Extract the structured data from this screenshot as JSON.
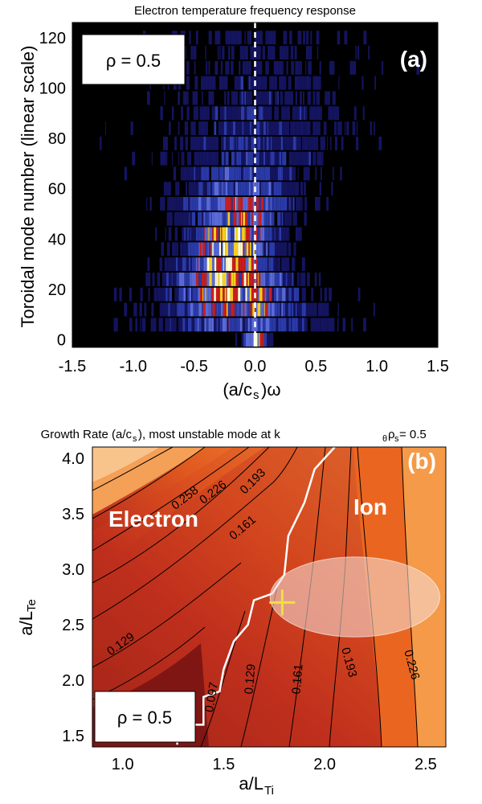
{
  "chart_data": [
    {
      "type": "heatmap",
      "panel_label": "(a)",
      "title": "Electron temperature frequency response",
      "xlabel": "(a/c",
      "xlabel_sub": "s",
      "xlabel_suffix": ")ω",
      "ylabel": "Toroidal mode number (linear scale)",
      "annotation": "ρ  = 0.5",
      "xlim": [
        -1.5,
        1.5
      ],
      "ylim": [
        -3,
        126
      ],
      "x_ticks": [
        "-1.5",
        "-1.0",
        "-0.5",
        "0.0",
        "0.5",
        "1.0",
        "1.5"
      ],
      "x_tick_values": [
        -1.5,
        -1.0,
        -0.5,
        0.0,
        0.5,
        1.0,
        1.5
      ],
      "y_ticks": [
        "0",
        "20",
        "40",
        "60",
        "80",
        "100",
        "120"
      ],
      "y_tick_values": [
        0,
        20,
        40,
        60,
        80,
        100,
        120
      ],
      "mode_rows": [
        0,
        6,
        12,
        18,
        24,
        30,
        36,
        42,
        48,
        54,
        60,
        66,
        72,
        78,
        84,
        90,
        96,
        102,
        108,
        114,
        120
      ],
      "row_widths": [
        0.08,
        0.6,
        0.5,
        0.45,
        0.4,
        0.32,
        0.3,
        0.32,
        0.35,
        0.4,
        0.4,
        0.45,
        0.5,
        0.55,
        0.6,
        0.6,
        0.6,
        0.6,
        0.6,
        0.6,
        0.6
      ],
      "row_centers": [
        0.0,
        -0.12,
        -0.15,
        -0.18,
        -0.2,
        -0.22,
        -0.22,
        -0.2,
        -0.18,
        -0.15,
        -0.12,
        -0.1,
        -0.05,
        0.0,
        0.0,
        0.0,
        0.0,
        0.0,
        0.0,
        0.0,
        0.0
      ],
      "row_peaks": [
        0.8,
        0.45,
        0.7,
        0.85,
        0.95,
        1.0,
        0.95,
        0.85,
        0.7,
        0.6,
        0.45,
        0.35,
        0.3,
        0.25,
        0.2,
        0.2,
        0.15,
        0.15,
        0.12,
        0.12,
        0.1
      ],
      "vertical_line_x": 0.0,
      "colormap": [
        "#000000",
        "#141460",
        "#2a3aa8",
        "#5a6ad8",
        "#c81e1e",
        "#f5d020",
        "#ffffd0"
      ]
    },
    {
      "type": "contour",
      "panel_label": "(b)",
      "title": "Growth Rate (a/c",
      "title_sub": "s",
      "title_mid": " ), most unstable mode at k",
      "title_sub2": "θ",
      "title_mid2": "ρ",
      "title_sub3": "s",
      "title_end": " = 0.5",
      "xlabel": "a/L",
      "xlabel_sub": "Ti",
      "ylabel": "a/L",
      "ylabel_sub": "Te",
      "annotation": "ρ  = 0.5",
      "region_labels": [
        "Electron",
        "Ion"
      ],
      "xlim": [
        0.85,
        2.6
      ],
      "ylim": [
        1.4,
        4.1
      ],
      "x_ticks": [
        "1.0",
        "1.5",
        "2.0",
        "2.5"
      ],
      "x_tick_values": [
        1.0,
        1.5,
        2.0,
        2.5
      ],
      "y_ticks": [
        "1.5",
        "2.0",
        "2.5",
        "3.0",
        "3.5",
        "4.0"
      ],
      "y_tick_values": [
        1.5,
        2.0,
        2.5,
        3.0,
        3.5,
        4.0
      ],
      "contour_levels": [
        "0.097",
        "0.129",
        "0.161",
        "0.193",
        "0.226",
        "0.258"
      ],
      "boundary_points": [
        [
          1.27,
          1.42
        ],
        [
          1.27,
          1.6
        ],
        [
          1.4,
          1.6
        ],
        [
          1.4,
          1.85
        ],
        [
          1.48,
          1.9
        ],
        [
          1.5,
          2.1
        ],
        [
          1.55,
          2.35
        ],
        [
          1.62,
          2.5
        ],
        [
          1.65,
          2.72
        ],
        [
          1.74,
          2.78
        ],
        [
          1.8,
          2.95
        ],
        [
          1.82,
          3.3
        ],
        [
          1.9,
          3.6
        ],
        [
          1.95,
          3.9
        ],
        [
          2.05,
          4.1
        ]
      ],
      "operating_point": [
        1.79,
        2.7
      ],
      "ellipse_center": [
        2.15,
        2.75
      ],
      "ellipse_radii": [
        0.42,
        0.36
      ],
      "colors": {
        "dark_red": "#7a1414",
        "red": "#b82a1c",
        "orange_red": "#d63e1e",
        "orange": "#ea6620",
        "light_orange": "#f49a48",
        "peach": "#f8c48c",
        "boundary": "#ffffff",
        "marker": "#f0e040",
        "ellipse": "#f4d8d0"
      }
    }
  ]
}
